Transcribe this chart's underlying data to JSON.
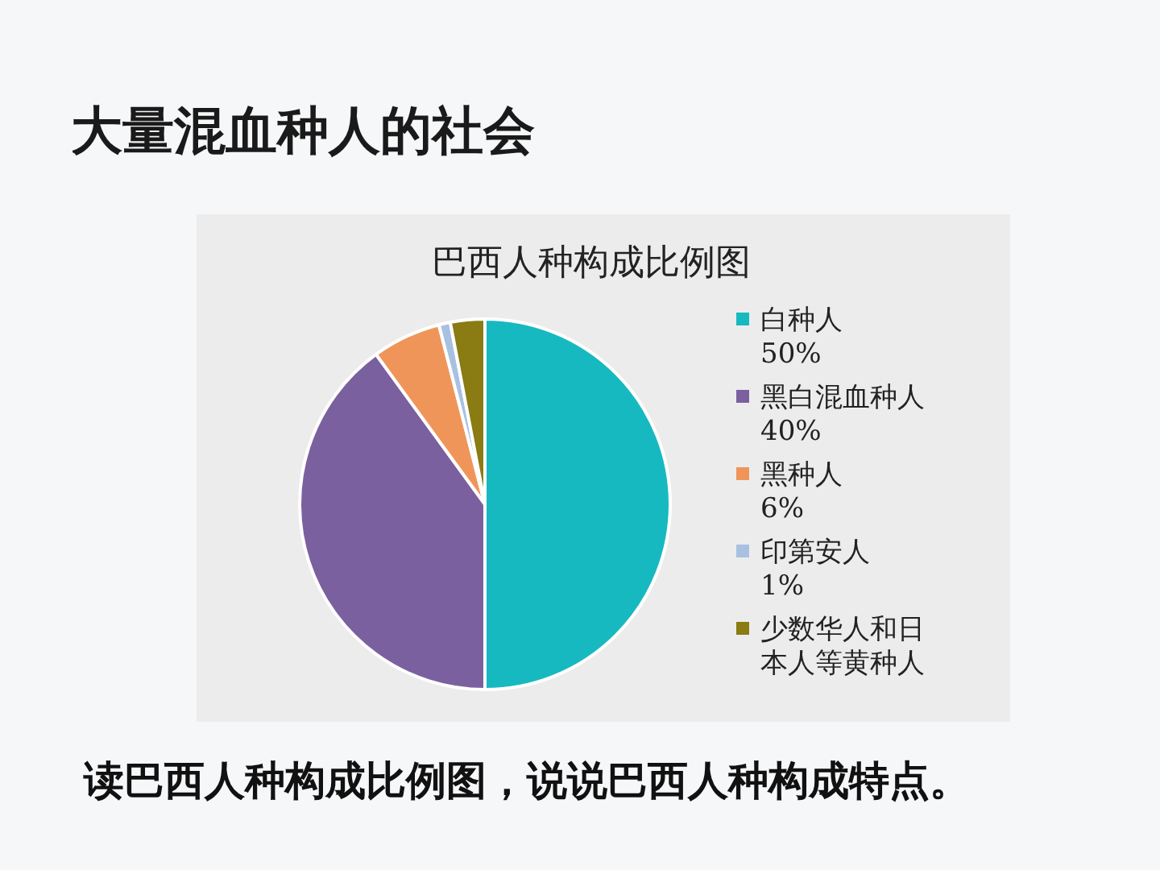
{
  "chart_data": {
    "type": "pie",
    "title": "大量混血种人的社会",
    "subtitle": "巴西人种构成比例图",
    "categories": [
      "白种人",
      "黑白混血种人",
      "黑种人",
      "印第安人",
      "少数华人和日本人等黄种人"
    ],
    "values": [
      50,
      40,
      6,
      1,
      3
    ],
    "value_labels": [
      "50%",
      "40%",
      "6%",
      "1%",
      null
    ],
    "colors": [
      "#17b9c1",
      "#7b609f",
      "#f0955a",
      "#a9c1e1",
      "#8a7b12"
    ],
    "legend": "right",
    "annotations": [
      "读巴西人种构成比例图，说说巴西人种构成特点。"
    ]
  }
}
